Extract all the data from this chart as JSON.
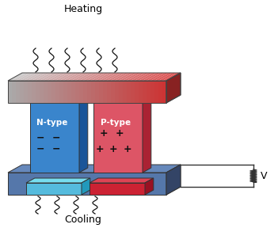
{
  "heating_text": "Heating",
  "cooling_text": "Cooling",
  "ntype_text": "N-type",
  "ptype_text": "P-type",
  "voltage_text": "V",
  "bg_color": "#ffffff",
  "top_plate_face_left": "#b0b0b0",
  "top_plate_face_right": "#cc3333",
  "top_plate_top_left": "#cccccc",
  "top_plate_top_right": "#dd4444",
  "top_plate_side": "#999999",
  "bottom_plate_face": "#5577aa",
  "bottom_plate_top": "#6688bb",
  "bottom_plate_side": "#334466",
  "ntype_face": "#3a85cc",
  "ntype_side": "#1a5599",
  "ntype_top": "#4499dd",
  "ntype_pad_face": "#55bbdd",
  "ntype_pad_side": "#2299bb",
  "ntype_pad_top": "#77ddee",
  "ptype_face": "#dd5566",
  "ptype_side": "#aa2233",
  "ptype_top": "#ee7788",
  "ptype_pad_face": "#cc2233",
  "ptype_pad_side": "#991122",
  "ptype_pad_top": "#dd4455",
  "wave_color": "#111111",
  "circuit_color": "#333333"
}
